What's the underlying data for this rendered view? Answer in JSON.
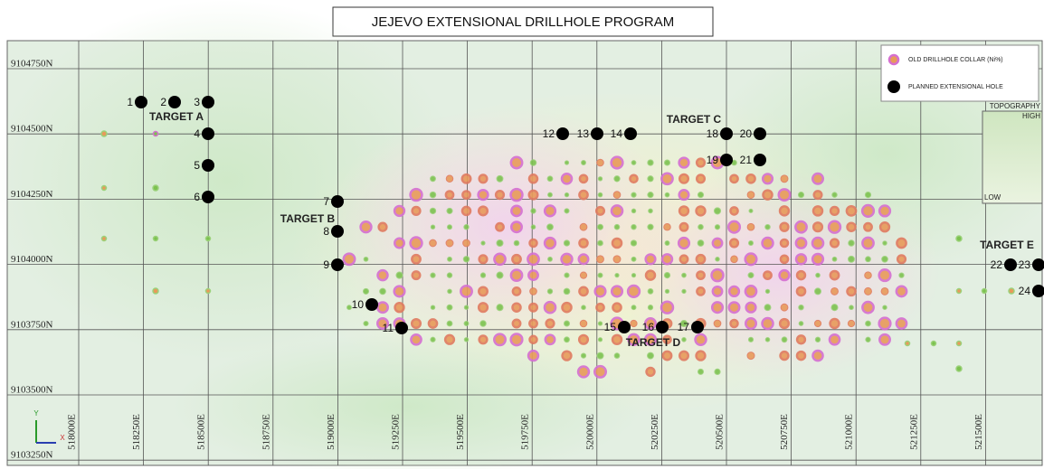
{
  "title": "JEJEVO EXTENSIONAL DRILLHOLE PROGRAM",
  "legend": {
    "old_collar": "OLD DRILLHOLE COLLAR (Ni%)",
    "planned_hole": "PLANNED EXTENSIONAL HOLE"
  },
  "topography": {
    "title": "TOPOGRAPHY",
    "high": "HIGH",
    "low": "LOW"
  },
  "targets": [
    "TARGET A",
    "TARGET B",
    "TARGET C",
    "TARGET D",
    "TARGET E"
  ],
  "holes": [
    "1",
    "2",
    "3",
    "4",
    "5",
    "6",
    "7",
    "8",
    "9",
    "10",
    "11",
    "12",
    "13",
    "14",
    "15",
    "16",
    "17",
    "18",
    "19",
    "20",
    "21",
    "22",
    "23",
    "24"
  ],
  "northing_labels": [
    "9104750N",
    "9104500N",
    "9104250N",
    "9104000N",
    "9103750N",
    "9103500N",
    "9103250N"
  ],
  "easting_labels": [
    "518000E",
    "518250E",
    "518500E",
    "518750E",
    "519000E",
    "519250E",
    "519500E",
    "519750E",
    "520000E",
    "520250E",
    "520500E",
    "520750E",
    "521000E",
    "521250E",
    "521500E"
  ],
  "axis_icon": {
    "y": "Y",
    "x": "X"
  }
}
